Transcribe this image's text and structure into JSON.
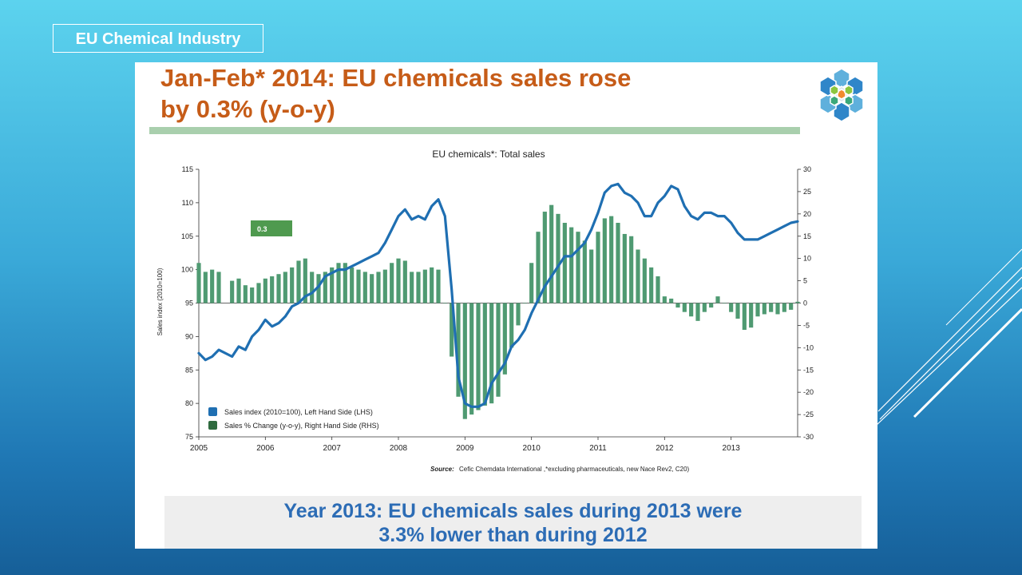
{
  "header_tag": "EU Chemical Industry",
  "slide": {
    "title_line1": "Jan-Feb* 2014: EU chemicals sales rose",
    "title_line2": "by 0.3% (y-o-y)",
    "footer_line1": "Year 2013: EU chemicals sales during 2013 were",
    "footer_line2": "3.3% lower than during 2012"
  },
  "colors": {
    "index_line": "#1f6fb2",
    "bars": "#4f9a72",
    "title": "#c65c18",
    "badge": "#4f9a4f"
  },
  "chart_data": {
    "type": "bar",
    "title": "EU chemicals*: Total sales",
    "ylabel_left": "Sales index (2010=100)",
    "ylim_left": [
      75,
      115
    ],
    "yticks_left": [
      "75",
      "80",
      "85",
      "90",
      "95",
      "100",
      "105",
      "110",
      "115"
    ],
    "ylim_right": [
      -30,
      30
    ],
    "yticks_right": [
      "-30",
      "-25",
      "-20",
      "-15",
      "-10",
      "-5",
      "0",
      "5",
      "10",
      "15",
      "20",
      "25",
      "30"
    ],
    "x_range": [
      2005.0,
      2014.0
    ],
    "xticks": [
      "2005",
      "2006",
      "2007",
      "2008",
      "2009",
      "2010",
      "2011",
      "2012",
      "2013"
    ],
    "annotation": "0.3",
    "source_prefix": "Source:",
    "source_text": "Cefic Chemdata International ,*excluding pharmaceuticals, new Nace Rev2, C20)",
    "legend_position": "bottom-left",
    "series": [
      {
        "name": "Sales index (2010=100), Left Hand Side (LHS)",
        "axis": "left",
        "style": "line",
        "x": [
          2005.0,
          2005.1,
          2005.2,
          2005.3,
          2005.5,
          2005.6,
          2005.7,
          2005.8,
          2005.9,
          2006.0,
          2006.1,
          2006.2,
          2006.3,
          2006.4,
          2006.5,
          2006.6,
          2006.7,
          2006.8,
          2006.9,
          2007.0,
          2007.1,
          2007.2,
          2007.3,
          2007.4,
          2007.5,
          2007.6,
          2007.7,
          2007.8,
          2007.9,
          2008.0,
          2008.1,
          2008.2,
          2008.3,
          2008.4,
          2008.5,
          2008.6,
          2008.7,
          2008.8,
          2008.9,
          2009.0,
          2009.1,
          2009.2,
          2009.3,
          2009.4,
          2009.5,
          2009.6,
          2009.7,
          2009.8,
          2009.9,
          2010.0,
          2010.1,
          2010.2,
          2010.3,
          2010.4,
          2010.5,
          2010.6,
          2010.7,
          2010.8,
          2010.9,
          2011.0,
          2011.1,
          2011.2,
          2011.3,
          2011.4,
          2011.5,
          2011.6,
          2011.7,
          2011.8,
          2011.9,
          2012.0,
          2012.1,
          2012.2,
          2012.3,
          2012.4,
          2012.5,
          2012.6,
          2012.7,
          2012.8,
          2012.9,
          2013.0,
          2013.1,
          2013.2,
          2013.3,
          2013.4,
          2013.5,
          2013.6,
          2013.7,
          2013.8,
          2013.9,
          2014.0
        ],
        "y": [
          87.5,
          86.5,
          87.0,
          88.0,
          87.0,
          88.5,
          88.0,
          90.0,
          91.0,
          92.5,
          91.5,
          92.0,
          93.0,
          94.5,
          95.0,
          96.0,
          96.5,
          97.5,
          99.0,
          99.5,
          100.0,
          100.0,
          100.5,
          101.0,
          101.5,
          102.0,
          102.5,
          104.0,
          106.0,
          108.0,
          109.0,
          107.5,
          108.0,
          107.5,
          109.5,
          110.5,
          108.0,
          97.0,
          84.0,
          80.0,
          79.5,
          79.5,
          80.0,
          83.0,
          84.5,
          86.0,
          88.5,
          89.5,
          91.0,
          93.5,
          95.5,
          97.5,
          99.0,
          100.5,
          102.0,
          102.0,
          103.0,
          104.0,
          106.0,
          108.5,
          111.5,
          112.5,
          112.8,
          111.5,
          111.0,
          110.0,
          108.0,
          108.0,
          110.0,
          111.0,
          112.5,
          112.0,
          109.5,
          108.0,
          107.5,
          108.5,
          108.5,
          108.0,
          108.0,
          107.0,
          105.5,
          104.5,
          104.5,
          104.5,
          105.0,
          105.5,
          106.0,
          106.5,
          107.0,
          107.2
        ]
      },
      {
        "name": "Sales % Change (y-o-y), Right Hand Side (RHS)",
        "axis": "right",
        "style": "bar",
        "x": [
          2005.0,
          2005.1,
          2005.2,
          2005.3,
          2005.5,
          2005.6,
          2005.7,
          2005.8,
          2005.9,
          2006.0,
          2006.1,
          2006.2,
          2006.3,
          2006.4,
          2006.5,
          2006.6,
          2006.7,
          2006.8,
          2006.9,
          2007.0,
          2007.1,
          2007.2,
          2007.3,
          2007.4,
          2007.5,
          2007.6,
          2007.7,
          2007.8,
          2007.9,
          2008.0,
          2008.1,
          2008.2,
          2008.3,
          2008.4,
          2008.5,
          2008.6,
          2008.7,
          2008.8,
          2008.9,
          2009.0,
          2009.1,
          2009.2,
          2009.3,
          2009.4,
          2009.5,
          2009.6,
          2009.7,
          2009.8,
          2009.9,
          2010.0,
          2010.1,
          2010.2,
          2010.3,
          2010.4,
          2010.5,
          2010.6,
          2010.7,
          2010.8,
          2010.9,
          2011.0,
          2011.1,
          2011.2,
          2011.3,
          2011.4,
          2011.5,
          2011.6,
          2011.7,
          2011.8,
          2011.9,
          2012.0,
          2012.1,
          2012.2,
          2012.3,
          2012.4,
          2012.5,
          2012.6,
          2012.7,
          2012.8,
          2012.9,
          2013.0,
          2013.1,
          2013.2,
          2013.3,
          2013.4,
          2013.5,
          2013.6,
          2013.7,
          2013.8,
          2013.9,
          2014.0
        ],
        "y": [
          9.0,
          7.0,
          7.5,
          7.0,
          5.0,
          5.5,
          4.0,
          3.5,
          4.5,
          5.5,
          6.0,
          6.5,
          7.0,
          8.0,
          9.5,
          10.0,
          7.0,
          6.5,
          7.0,
          8.0,
          9.0,
          9.0,
          8.0,
          7.5,
          7.0,
          6.5,
          7.0,
          7.5,
          9.0,
          10.0,
          9.5,
          7.0,
          7.0,
          7.5,
          8.0,
          7.5,
          0.0,
          -12.0,
          -21.0,
          -26.0,
          -25.0,
          -24.0,
          -23.0,
          -22.5,
          -21.0,
          -16.0,
          -10.0,
          -5.0,
          0.0,
          9.0,
          16.0,
          20.5,
          22.0,
          20.0,
          18.0,
          17.0,
          16.0,
          14.0,
          12.0,
          16.0,
          19.0,
          19.5,
          18.0,
          15.5,
          15.0,
          12.0,
          10.0,
          8.0,
          6.0,
          1.5,
          1.0,
          -1.0,
          -2.0,
          -3.0,
          -4.0,
          -2.0,
          -1.0,
          1.5,
          0.0,
          -2.0,
          -3.5,
          -6.0,
          -5.5,
          -3.0,
          -2.5,
          -2.0,
          -2.5,
          -2.0,
          -1.5,
          0.3
        ]
      }
    ]
  }
}
